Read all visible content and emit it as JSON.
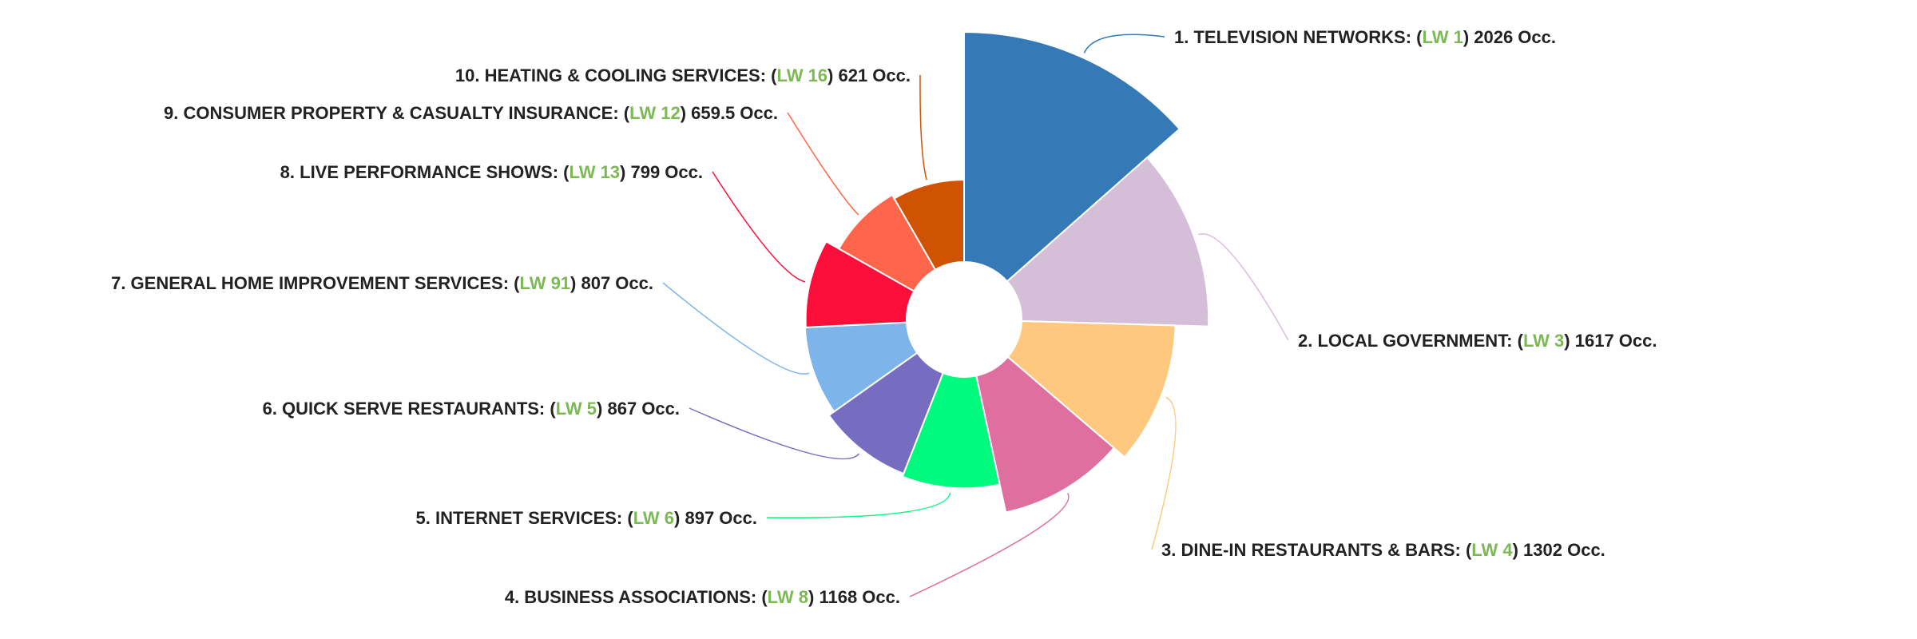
{
  "chart_data": {
    "type": "pie",
    "variant": "variable-radius rose",
    "title": "",
    "legend": "none",
    "lw_prefix": "LW",
    "unit": "Occ.",
    "slices": [
      {
        "rank": "1.",
        "name": "TELEVISION NETWORKS",
        "lw": "1",
        "value": 2026,
        "color": "#3579b6"
      },
      {
        "rank": "2.",
        "name": "LOCAL GOVERNMENT",
        "lw": "3",
        "value": 1617,
        "color": "#d5bfd8"
      },
      {
        "rank": "3.",
        "name": "DINE-IN RESTAURANTS & BARS",
        "lw": "4",
        "value": 1302,
        "color": "#fec97e"
      },
      {
        "rank": "4.",
        "name": "BUSINESS ASSOCIATIONS",
        "lw": "8",
        "value": 1168,
        "color": "#de6f9f"
      },
      {
        "rank": "5.",
        "name": "INTERNET SERVICES",
        "lw": "6",
        "value": 897,
        "color": "#00fa7e"
      },
      {
        "rank": "6.",
        "name": "QUICK SERVE RESTAURANTS",
        "lw": "5",
        "value": 867,
        "color": "#766dc1"
      },
      {
        "rank": "7.",
        "name": "GENERAL HOME IMPROVEMENT SERVICES",
        "lw": "91",
        "value": 807,
        "color": "#7db5ea"
      },
      {
        "rank": "8.",
        "name": "LIVE PERFORMANCE SHOWS",
        "lw": "13",
        "value": 799,
        "color": "#fb0f3a"
      },
      {
        "rank": "9.",
        "name": "CONSUMER PROPERTY & CASUALTY INSURANCE",
        "lw": "12",
        "value": 659.5,
        "color": "#fe654a"
      },
      {
        "rank": "10.",
        "name": "HEATING & COOLING SERVICES",
        "lw": "16",
        "value": 621,
        "color": "#cf5302"
      }
    ]
  }
}
